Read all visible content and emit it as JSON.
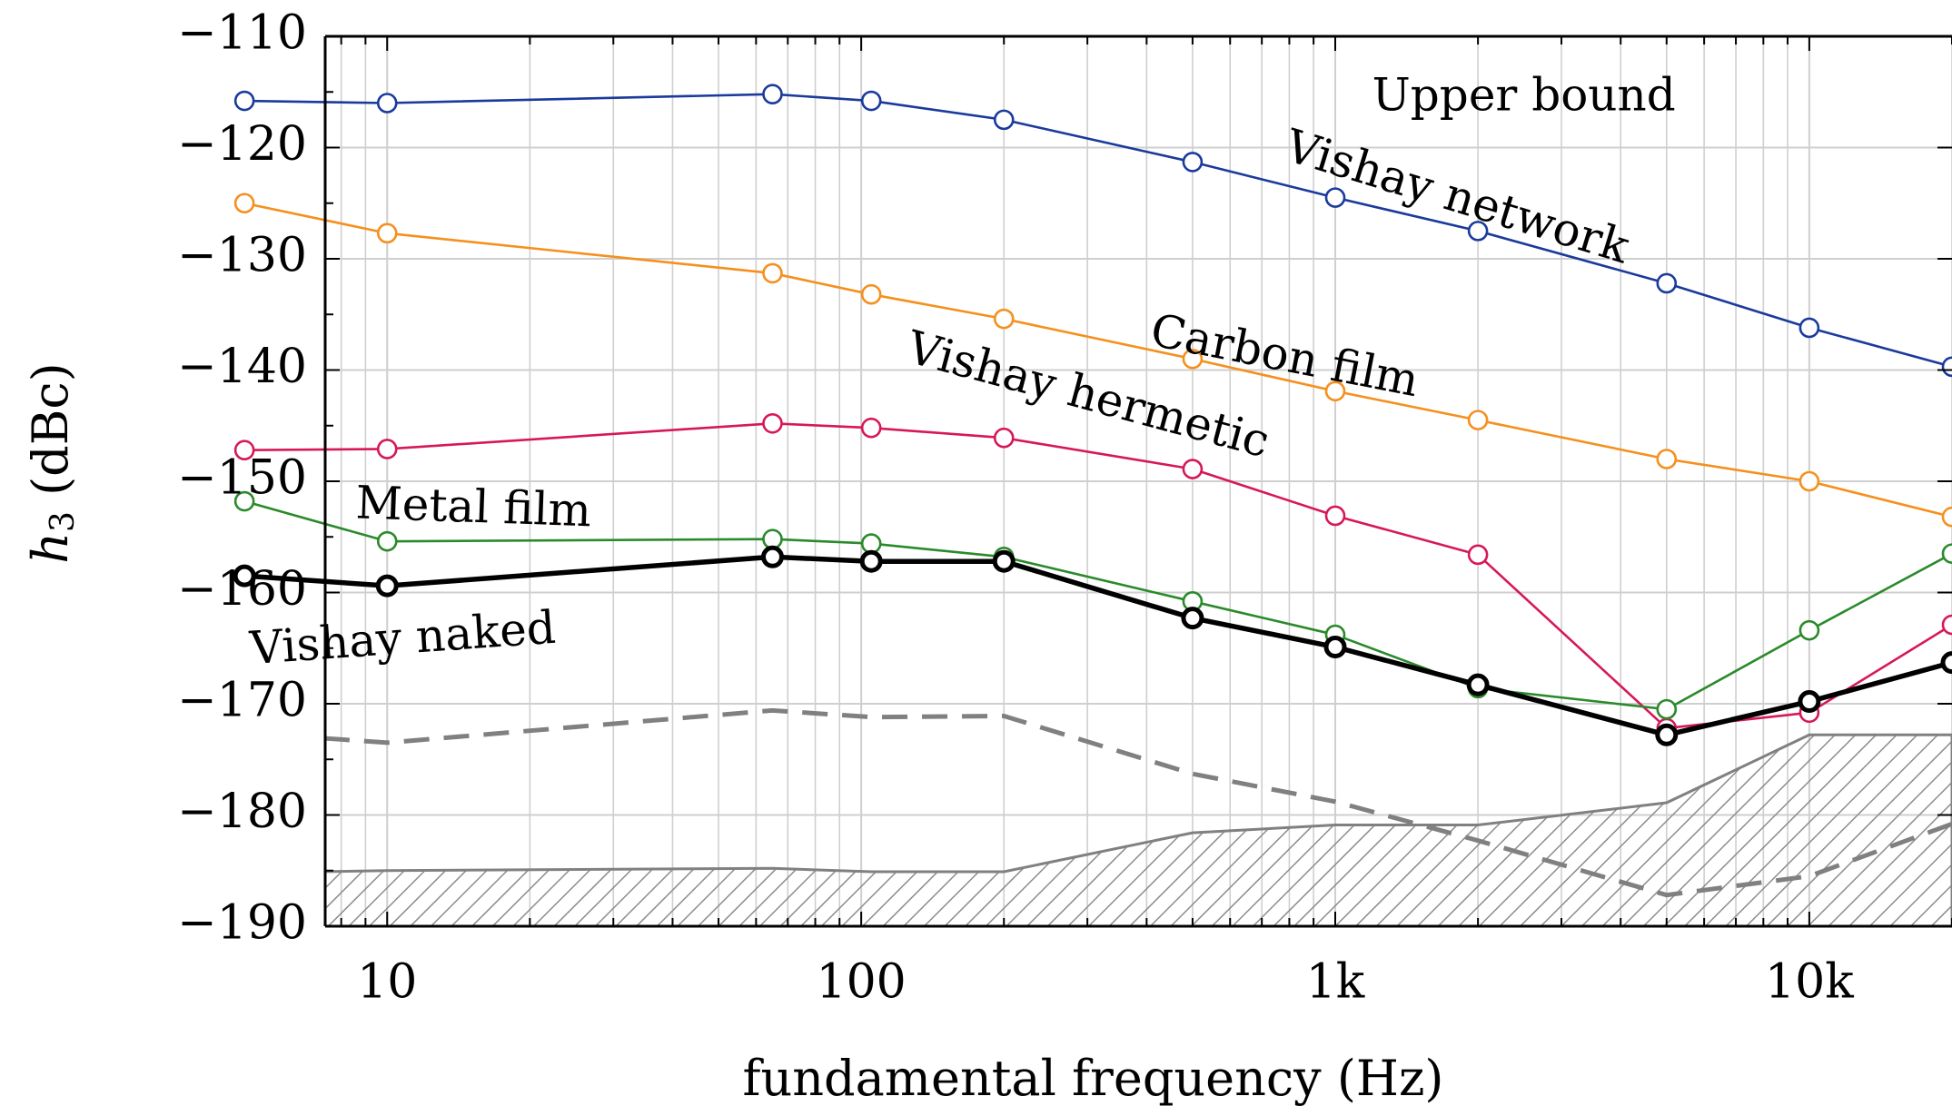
{
  "chart_data": {
    "type": "line",
    "xlabel": "fundamental frequency (Hz)",
    "ylabel_main": "h",
    "ylabel_sub": "3",
    "ylabel_unit": " (dBc)",
    "x_scale": "log",
    "xlim": [
      7.4,
      20000
    ],
    "ylim": [
      -190,
      -110
    ],
    "grid": true,
    "x_tick_values": [
      10,
      100,
      1000,
      10000
    ],
    "x_tick_labels": [
      "10",
      "100",
      "1k",
      "10k"
    ],
    "y_tick_values": [
      -110,
      -120,
      -130,
      -140,
      -150,
      -160,
      -170,
      -180,
      -190
    ],
    "y_tick_labels": [
      "−110",
      "−120",
      "−130",
      "−140",
      "−150",
      "−160",
      "−170",
      "−180",
      "−190"
    ],
    "x": [
      5,
      10,
      65,
      105,
      200,
      500,
      1000,
      2000,
      5000,
      10000,
      20000
    ],
    "series": [
      {
        "name": "Vishay network",
        "color": "#1a3a9c",
        "marker": "open-circle",
        "values": [
          -115.8,
          -116.0,
          -115.2,
          -115.8,
          -117.5,
          -121.3,
          -124.5,
          -127.5,
          -132.2,
          -136.2,
          -139.7
        ]
      },
      {
        "name": "Carbon film",
        "color": "#f5901e",
        "marker": "open-circle",
        "values": [
          -125.0,
          -127.7,
          -131.3,
          -133.2,
          -135.4,
          -139.0,
          -141.9,
          -144.5,
          -148.0,
          -150.0,
          -153.2
        ]
      },
      {
        "name": "Vishay hermetic",
        "color": "#d6185a",
        "marker": "open-circle",
        "values": [
          -147.2,
          -147.1,
          -144.8,
          -145.2,
          -146.1,
          -148.9,
          -153.1,
          -156.6,
          -172.2,
          -170.8,
          -162.9
        ]
      },
      {
        "name": "Metal film",
        "color": "#2a8a2a",
        "marker": "open-circle",
        "values": [
          -151.8,
          -155.4,
          -155.2,
          -155.6,
          -156.8,
          -160.8,
          -163.8,
          -168.6,
          -170.5,
          -163.4,
          -156.5
        ]
      },
      {
        "name": "Vishay naked",
        "color": "#000000",
        "marker": "open-circle-bold",
        "values": [
          -158.5,
          -159.4,
          -156.8,
          -157.2,
          -157.2,
          -162.3,
          -164.9,
          -168.3,
          -172.8,
          -169.8,
          -166.3
        ]
      }
    ],
    "dashed_line": {
      "color": "#808080",
      "values": [
        -172.6,
        -173.5,
        -170.6,
        -171.2,
        -171.1,
        -176.3,
        -178.8,
        -182.3,
        -187.2,
        -185.5,
        -180.8
      ]
    },
    "hatched_floor": {
      "color": "#808080",
      "values": [
        -185.2,
        -185.0,
        -184.8,
        -185.1,
        -185.1,
        -181.6,
        -180.9,
        -180.9,
        -178.9,
        -172.8,
        -172.8
      ]
    },
    "annotations": [
      {
        "text": "Upper bound",
        "x": 2500,
        "y": -115.6,
        "rotate": 0
      },
      {
        "text": "Vishay network",
        "x": 1800,
        "y": -124.7,
        "rotate": 17
      },
      {
        "text": "Carbon film",
        "x": 780,
        "y": -139.0,
        "rotate": 11
      },
      {
        "text": "Vishay hermetic",
        "x": 300,
        "y": -142.5,
        "rotate": 15
      },
      {
        "text": "Metal film",
        "x": 15.2,
        "y": -152.6,
        "rotate": 2
      },
      {
        "text": "Vishay naked",
        "x": 10.8,
        "y": -164.4,
        "rotate": -4
      }
    ]
  }
}
